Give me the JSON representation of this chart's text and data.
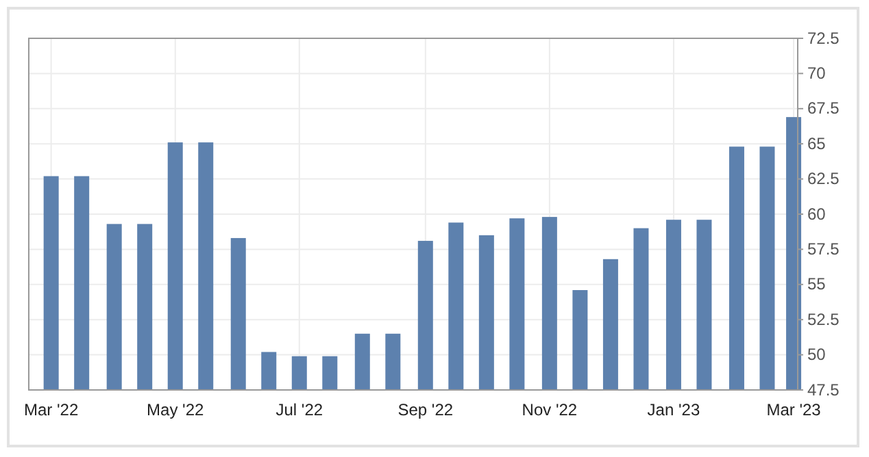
{
  "chart_data": {
    "type": "bar",
    "x": [
      "2022-03-01",
      "2022-03-16",
      "2022-04-01",
      "2022-04-16",
      "2022-05-01",
      "2022-05-16",
      "2022-06-01",
      "2022-06-16",
      "2022-07-01",
      "2022-07-16",
      "2022-08-01",
      "2022-08-16",
      "2022-09-01",
      "2022-09-16",
      "2022-10-01",
      "2022-10-16",
      "2022-11-01",
      "2022-11-16",
      "2022-12-01",
      "2022-12-16",
      "2023-01-01",
      "2023-01-16",
      "2023-02-01",
      "2023-02-16",
      "2023-03-01"
    ],
    "values": [
      62.7,
      62.7,
      59.3,
      59.3,
      65.1,
      65.1,
      58.3,
      50.2,
      49.9,
      49.9,
      51.5,
      51.5,
      58.1,
      59.4,
      58.5,
      59.7,
      59.8,
      54.6,
      56.8,
      59.0,
      59.6,
      59.6,
      64.8,
      64.8,
      66.9
    ],
    "color": "#5d81ae",
    "xlim": [
      "2022-02-18",
      "2023-03-03"
    ],
    "xticks": [
      {
        "value": "2022-03-01",
        "label": "Mar '22"
      },
      {
        "value": "2022-05-01",
        "label": "May '22"
      },
      {
        "value": "2022-07-01",
        "label": "Jul '22"
      },
      {
        "value": "2022-09-01",
        "label": "Sep '22"
      },
      {
        "value": "2022-11-01",
        "label": "Nov '22"
      },
      {
        "value": "2023-01-01",
        "label": "Jan '23"
      },
      {
        "value": "2023-03-01",
        "label": "Mar '23"
      }
    ],
    "ylim": [
      47.5,
      72.5
    ],
    "yticks": [
      47.5,
      50,
      52.5,
      55,
      57.5,
      60,
      62.5,
      65,
      67.5,
      70,
      72.5
    ],
    "grid": true
  }
}
